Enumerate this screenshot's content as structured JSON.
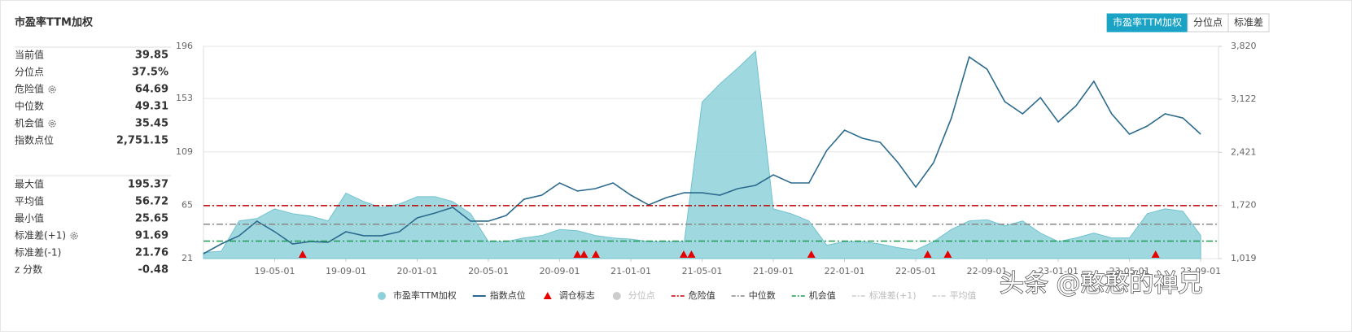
{
  "header": {
    "title": "市盈率TTM加权"
  },
  "tabs": [
    {
      "label": "市盈率TTM加权",
      "active": true
    },
    {
      "label": "分位点",
      "active": false
    },
    {
      "label": "标准差",
      "active": false
    }
  ],
  "stats": [
    [
      {
        "label": "当前值",
        "value": "39.85"
      },
      {
        "label": "分位点",
        "value": "37.5%"
      },
      {
        "label": "危险值",
        "value": "64.69",
        "settings": true
      },
      {
        "label": "中位数",
        "value": "49.31"
      },
      {
        "label": "机会值",
        "value": "35.45",
        "settings": true
      },
      {
        "label": "指数点位",
        "value": "2,751.15"
      }
    ],
    [
      {
        "label": "最大值",
        "value": "195.37"
      },
      {
        "label": "平均值",
        "value": "56.72"
      },
      {
        "label": "最小值",
        "value": "25.65"
      },
      {
        "label": "标准差(+1)",
        "value": "91.69",
        "settings": true
      },
      {
        "label": "标准差(-1)",
        "value": "21.76"
      },
      {
        "label": "z 分数",
        "value": "-0.48"
      }
    ]
  ],
  "chart_data": {
    "type": "line",
    "x": [
      "19-01-01",
      "19-02-01",
      "19-03-01",
      "19-04-01",
      "19-05-01",
      "19-06-01",
      "19-07-01",
      "19-08-01",
      "19-09-01",
      "19-10-01",
      "19-11-01",
      "19-12-01",
      "20-01-01",
      "20-02-01",
      "20-03-01",
      "20-04-01",
      "20-05-01",
      "20-06-01",
      "20-07-01",
      "20-08-01",
      "20-09-01",
      "20-10-01",
      "20-11-01",
      "20-12-01",
      "21-01-01",
      "21-02-01",
      "21-03-01",
      "21-04-01",
      "21-05-01",
      "21-06-01",
      "21-07-01",
      "21-08-01",
      "21-09-01",
      "21-10-01",
      "21-11-01",
      "21-12-01",
      "22-01-01",
      "22-02-01",
      "22-03-01",
      "22-04-01",
      "22-05-01",
      "22-06-01",
      "22-07-01",
      "22-08-01",
      "22-09-01",
      "22-10-01",
      "22-11-01",
      "22-12-01",
      "23-01-01",
      "23-02-01",
      "23-03-01",
      "23-04-01",
      "23-05-01",
      "23-06-01",
      "23-07-01",
      "23-08-01",
      "23-09-01"
    ],
    "xlim": [
      "19-01-01",
      "23-10-01"
    ],
    "xticks": [
      "19-05-01",
      "19-09-01",
      "20-01-01",
      "20-05-01",
      "20-09-01",
      "21-01-01",
      "21-05-01",
      "21-09-01",
      "22-01-01",
      "22-05-01",
      "22-09-01",
      "23-01-01",
      "23-05-01",
      "23-09-01"
    ],
    "ylim": [
      21,
      196
    ],
    "yticks": [
      21,
      65,
      109,
      153,
      196
    ],
    "y2lim": [
      1019,
      3820
    ],
    "y2ticks": [
      {
        "value": 1019,
        "label": "1,019"
      },
      {
        "value": 1720,
        "label": "1,720"
      },
      {
        "value": 2421,
        "label": "2,421"
      },
      {
        "value": 3122,
        "label": "3,122"
      },
      {
        "value": 3820,
        "label": "3,820"
      }
    ],
    "grid": true,
    "series": [
      {
        "name": "市盈率TTM加权",
        "type": "area",
        "color": "#8fd1db",
        "values": [
          26,
          27,
          52,
          54,
          62,
          58,
          56,
          52,
          75,
          68,
          63,
          66,
          72,
          72,
          68,
          58,
          35,
          35,
          38,
          40,
          45,
          44,
          40,
          38,
          37,
          35,
          35,
          35,
          150,
          165,
          178,
          192,
          62,
          58,
          52,
          32,
          35,
          35,
          33,
          30,
          28,
          35,
          45,
          52,
          53,
          48,
          52,
          42,
          35,
          38,
          42,
          38,
          38,
          58,
          62,
          60,
          40
        ]
      },
      {
        "name": "指数点位",
        "type": "line",
        "color": "#2b6a8e",
        "axis": "y2",
        "values": [
          1083,
          1212,
          1320,
          1513,
          1373,
          1212,
          1244,
          1234,
          1373,
          1320,
          1320,
          1373,
          1556,
          1620,
          1695,
          1513,
          1513,
          1588,
          1802,
          1856,
          2017,
          1910,
          1942,
          2017,
          1856,
          1727,
          1824,
          1888,
          1888,
          1856,
          1942,
          1985,
          2124,
          2017,
          2017,
          2446,
          2714,
          2607,
          2553,
          2285,
          1963,
          2285,
          2875,
          3680,
          3519,
          3090,
          2929,
          3143,
          2822,
          3036,
          3358,
          2929,
          2661,
          2768,
          2929,
          2875,
          2661
        ]
      },
      {
        "name": "调仓标志",
        "type": "marker",
        "color": "#e60000",
        "x": [
          "19-06-18",
          "20-10-01",
          "20-10-12",
          "20-11-02",
          "21-03-30",
          "21-04-13",
          "21-11-05",
          "22-05-21",
          "22-06-25",
          "23-06-15"
        ]
      }
    ],
    "reference_lines": [
      {
        "name": "分位点",
        "visible": false,
        "symbol": "circle"
      },
      {
        "name": "危险值",
        "value": 64.69,
        "color": "#c00000",
        "visible": true
      },
      {
        "name": "中位数",
        "value": 49.31,
        "color": "#888888",
        "visible": true
      },
      {
        "name": "机会值",
        "value": 35.45,
        "color": "#1e9a50",
        "visible": true
      },
      {
        "name": "标准差(+1)",
        "visible": false
      },
      {
        "name": "平均值",
        "visible": false
      }
    ]
  },
  "watermark": "头条 @憨憨的禅兄"
}
